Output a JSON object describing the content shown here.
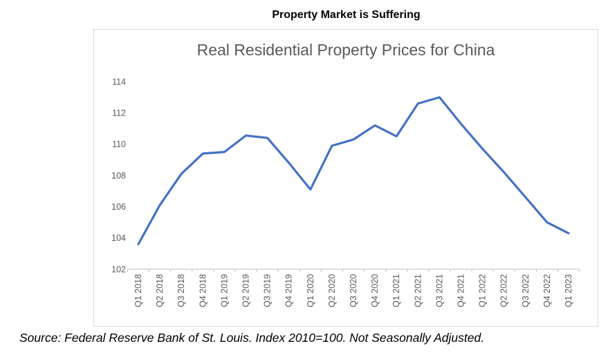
{
  "page": {
    "headline": "Property Market is Suffering",
    "source_note": "Source: Federal Reserve Bank of St. Louis. Index 2010=100. Not Seasonally Adjusted."
  },
  "chart_data": {
    "type": "line",
    "title": "Real Residential Property Prices for China",
    "categories": [
      "Q1 2018",
      "Q2 2018",
      "Q3 2018",
      "Q4 2018",
      "Q1 2019",
      "Q2 2019",
      "Q3 2019",
      "Q4 2019",
      "Q1 2020",
      "Q2 2020",
      "Q3 2020",
      "Q4 2020",
      "Q1 2021",
      "Q2 2021",
      "Q3 2021",
      "Q4 2021",
      "Q1 2022",
      "Q2 2022",
      "Q3 2022",
      "Q4 2022",
      "Q1 2023"
    ],
    "values": [
      103.6,
      106.1,
      108.1,
      109.4,
      109.5,
      110.55,
      110.4,
      108.8,
      107.1,
      109.9,
      110.3,
      111.2,
      110.5,
      112.6,
      113.0,
      111.3,
      109.7,
      108.2,
      106.6,
      105.0,
      104.3
    ],
    "ylim": [
      102,
      114
    ],
    "ytick_step": 2,
    "grid": false,
    "legend": "none",
    "line_color": "#4472C4",
    "label_color": "#595959",
    "axis_color": "#BFBFBF",
    "xlabel": "",
    "ylabel": ""
  }
}
